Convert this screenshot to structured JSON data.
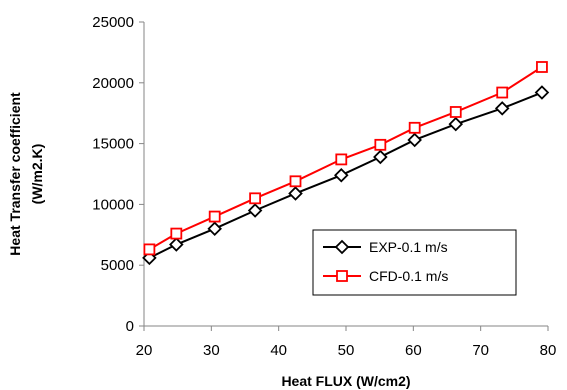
{
  "chart_data": {
    "type": "line",
    "title": "",
    "xlabel": "Heat FLUX (W/cm2)",
    "ylabel_lines": [
      "Heat Transfer coefficient",
      "(W/m2.K)"
    ],
    "xlim": [
      20,
      80
    ],
    "ylim": [
      0,
      25000
    ],
    "x_ticks": [
      20,
      30,
      40,
      50,
      60,
      70,
      80
    ],
    "y_ticks": [
      0,
      5000,
      10000,
      15000,
      20000,
      25000
    ],
    "grid": false,
    "legend_position": "lower-right",
    "series": [
      {
        "name": "EXP-0.1 m/s",
        "color": "#000000",
        "marker": "diamond",
        "x": [
          20.8,
          24.8,
          30.5,
          36.5,
          42.5,
          49.3,
          55.1,
          60.2,
          66.3,
          73.2,
          79.1
        ],
        "y": [
          5600,
          6700,
          8000,
          9500,
          10900,
          12400,
          13900,
          15300,
          16600,
          17900,
          19200
        ]
      },
      {
        "name": "CFD-0.1 m/s",
        "color": "#ff0000",
        "marker": "square",
        "x": [
          20.8,
          24.8,
          30.5,
          36.5,
          42.5,
          49.3,
          55.1,
          60.2,
          66.3,
          73.2,
          79.1
        ],
        "y": [
          6300,
          7600,
          9000,
          10500,
          11900,
          13700,
          14900,
          16300,
          17600,
          19200,
          21300
        ]
      }
    ]
  }
}
